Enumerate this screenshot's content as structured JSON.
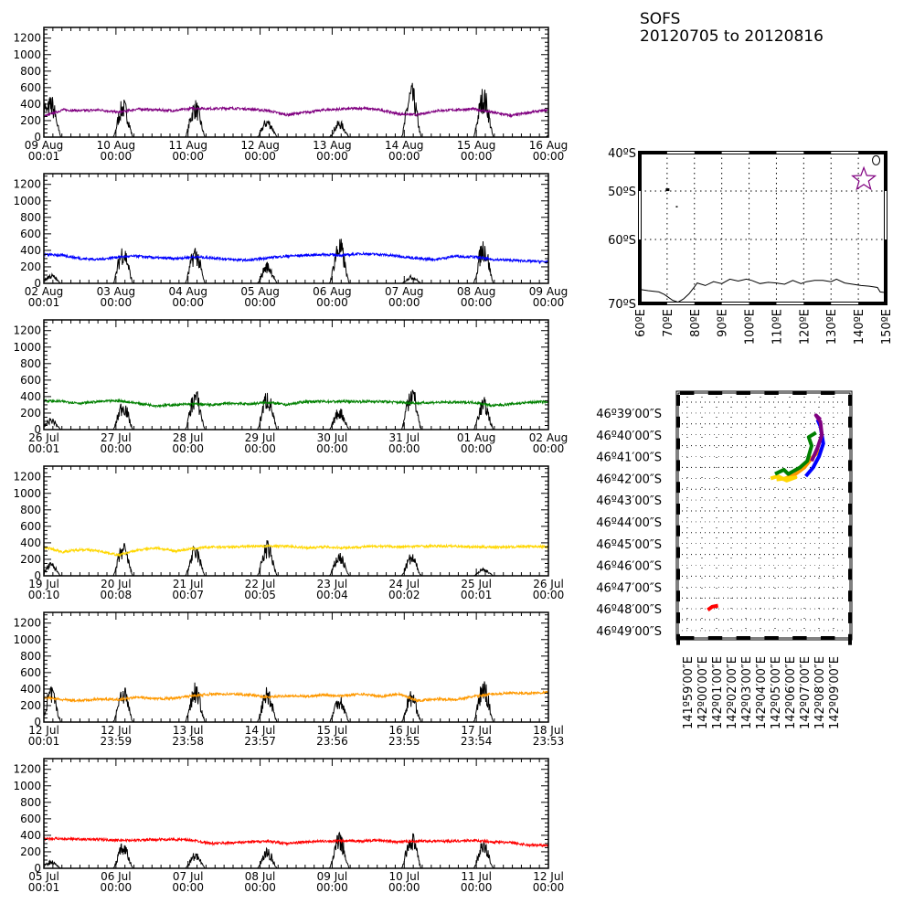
{
  "header": {
    "station": "SOFS",
    "date_range": "20120705 to 20120816"
  },
  "chart_data": [
    {
      "type": "line",
      "ylim": [
        0,
        1330
      ],
      "yticks": [
        0,
        200,
        400,
        600,
        800,
        1000,
        1200
      ],
      "xticks": [
        [
          "09 Aug",
          "00:01"
        ],
        [
          "10 Aug",
          "00:00"
        ],
        [
          "11 Aug",
          "00:00"
        ],
        [
          "12 Aug",
          "00:00"
        ],
        [
          "13 Aug",
          "00:00"
        ],
        [
          "14 Aug",
          "00:00"
        ],
        [
          "15 Aug",
          "00:00"
        ],
        [
          "16 Aug",
          "00:00"
        ]
      ],
      "color": "#800080",
      "colored_series_halfday": [
        250,
        330,
        320,
        330,
        300,
        340,
        330,
        320,
        350,
        345,
        350,
        340,
        320,
        270,
        300,
        330,
        340,
        350,
        330,
        280,
        270,
        320,
        330,
        340,
        300,
        260,
        300,
        330
      ],
      "black_series_daily_peaks": [
        520,
        480,
        470,
        240,
        210,
        670,
        630,
        150
      ]
    },
    {
      "type": "line",
      "ylim": [
        0,
        1330
      ],
      "yticks": [
        0,
        200,
        400,
        600,
        800,
        1000,
        1200
      ],
      "xticks": [
        [
          "02 Aug",
          "00:01"
        ],
        [
          "03 Aug",
          "00:00"
        ],
        [
          "04 Aug",
          "00:00"
        ],
        [
          "05 Aug",
          "00:00"
        ],
        [
          "06 Aug",
          "00:00"
        ],
        [
          "07 Aug",
          "00:00"
        ],
        [
          "08 Aug",
          "00:00"
        ],
        [
          "09 Aug",
          "00:00"
        ]
      ],
      "color": "#0000ff",
      "colored_series_halfday": [
        350,
        340,
        300,
        290,
        320,
        330,
        310,
        300,
        320,
        310,
        290,
        280,
        310,
        330,
        340,
        350,
        340,
        360,
        350,
        330,
        300,
        290,
        330,
        320,
        290,
        280,
        270,
        260
      ],
      "black_series_daily_peaks": [
        120,
        500,
        480,
        270,
        580,
        100,
        570,
        0
      ]
    },
    {
      "type": "line",
      "ylim": [
        0,
        1330
      ],
      "yticks": [
        0,
        200,
        400,
        600,
        800,
        1000,
        1200
      ],
      "xticks": [
        [
          "26 Jul",
          "00:01"
        ],
        [
          "27 Jul",
          "00:00"
        ],
        [
          "28 Jul",
          "00:00"
        ],
        [
          "29 Jul",
          "00:00"
        ],
        [
          "30 Jul",
          "00:00"
        ],
        [
          "31 Jul",
          "00:00"
        ],
        [
          "01 Aug",
          "00:00"
        ],
        [
          "02 Aug",
          "00:00"
        ]
      ],
      "color": "#008000",
      "colored_series_halfday": [
        350,
        340,
        320,
        340,
        350,
        320,
        290,
        300,
        310,
        300,
        320,
        310,
        330,
        300,
        340,
        340,
        340,
        340,
        340,
        330,
        320,
        330,
        330,
        330,
        290,
        310,
        330,
        340
      ],
      "black_series_daily_peaks": [
        150,
        380,
        520,
        500,
        280,
        600,
        400,
        0
      ]
    },
    {
      "type": "line",
      "ylim": [
        0,
        1330
      ],
      "yticks": [
        0,
        200,
        400,
        600,
        800,
        1000,
        1200
      ],
      "xticks": [
        [
          "19 Jul",
          "00:10"
        ],
        [
          "20 Jul",
          "00:08"
        ],
        [
          "21 Jul",
          "00:07"
        ],
        [
          "22 Jul",
          "00:05"
        ],
        [
          "23 Jul",
          "00:04"
        ],
        [
          "24 Jul",
          "00:02"
        ],
        [
          "25 Jul",
          "00:01"
        ],
        [
          "26 Jul",
          "00:00"
        ]
      ],
      "color": "#ffd700",
      "colored_series_halfday": [
        350,
        290,
        320,
        300,
        250,
        310,
        340,
        300,
        330,
        350,
        350,
        360,
        360,
        360,
        340,
        350,
        340,
        350,
        360,
        350,
        360,
        360,
        360,
        350,
        350,
        350,
        360,
        350
      ],
      "black_series_daily_peaks": [
        170,
        420,
        380,
        440,
        300,
        280,
        100,
        0
      ]
    },
    {
      "type": "line",
      "ylim": [
        0,
        1330
      ],
      "yticks": [
        0,
        200,
        400,
        600,
        800,
        1000,
        1200
      ],
      "xticks": [
        [
          "12 Jul",
          "00:01"
        ],
        [
          "12 Jul",
          "23:59"
        ],
        [
          "13 Jul",
          "23:58"
        ],
        [
          "14 Jul",
          "23:57"
        ],
        [
          "15 Jul",
          "23:56"
        ],
        [
          "16 Jul",
          "23:55"
        ],
        [
          "17 Jul",
          "23:54"
        ],
        [
          "18 Jul",
          "23:53"
        ]
      ],
      "color": "#ff9900",
      "colored_series_halfday": [
        300,
        270,
        260,
        280,
        270,
        300,
        280,
        290,
        320,
        340,
        340,
        330,
        300,
        320,
        310,
        330,
        320,
        340,
        310,
        340,
        260,
        280,
        270,
        310,
        340,
        350,
        350,
        360
      ],
      "black_series_daily_peaks": [
        450,
        480,
        500,
        450,
        350,
        400,
        530,
        0
      ]
    },
    {
      "type": "line",
      "ylim": [
        0,
        1330
      ],
      "yticks": [
        0,
        200,
        400,
        600,
        800,
        1000,
        1200
      ],
      "xticks": [
        [
          "05 Jul",
          "00:01"
        ],
        [
          "06 Jul",
          "00:00"
        ],
        [
          "07 Jul",
          "00:00"
        ],
        [
          "08 Jul",
          "00:00"
        ],
        [
          "09 Jul",
          "00:00"
        ],
        [
          "10 Jul",
          "00:00"
        ],
        [
          "11 Jul",
          "00:00"
        ],
        [
          "12 Jul",
          "00:00"
        ]
      ],
      "color": "#ff0000",
      "colored_series_halfday": [
        360,
        360,
        350,
        350,
        340,
        340,
        350,
        350,
        340,
        300,
        310,
        320,
        330,
        300,
        320,
        330,
        330,
        330,
        340,
        320,
        330,
        330,
        330,
        340,
        320,
        310,
        280,
        280
      ],
      "black_series_daily_peaks": [
        100,
        320,
        200,
        250,
        440,
        460,
        350,
        0
      ]
    }
  ],
  "overview_map": {
    "lon_ticks": [
      "60ºE",
      "70ºE",
      "80ºE",
      "90ºE",
      "100ºE",
      "110ºE",
      "120ºE",
      "130ºE",
      "140ºE",
      "150ºE"
    ],
    "lat_ticks": [
      "40ºS",
      "50ºS",
      "60ºS",
      "70ºS"
    ],
    "star_color": "#800080",
    "star_position": {
      "lon": 142,
      "lat": -47
    },
    "coastline": [
      [
        60,
        -67.8
      ],
      [
        63,
        -68
      ],
      [
        67,
        -68.2
      ],
      [
        69,
        -68.6
      ],
      [
        72,
        -69.5
      ],
      [
        74,
        -69.8
      ],
      [
        76,
        -69.3
      ],
      [
        78,
        -68.5
      ],
      [
        80,
        -67.4
      ],
      [
        81,
        -66.8
      ],
      [
        84,
        -67.2
      ],
      [
        87,
        -66.6
      ],
      [
        90,
        -66.9
      ],
      [
        93,
        -66.2
      ],
      [
        96,
        -66.5
      ],
      [
        99,
        -66.2
      ],
      [
        101,
        -66.4
      ],
      [
        104,
        -66.9
      ],
      [
        107,
        -66.7
      ],
      [
        110,
        -66.8
      ],
      [
        113,
        -67.0
      ],
      [
        116,
        -66.4
      ],
      [
        119,
        -66.9
      ],
      [
        121,
        -66.6
      ],
      [
        124,
        -66.4
      ],
      [
        127,
        -66.4
      ],
      [
        130,
        -66.6
      ],
      [
        132,
        -66.2
      ],
      [
        135,
        -66.8
      ],
      [
        138,
        -67.0
      ],
      [
        141,
        -67.2
      ],
      [
        144,
        -67.3
      ],
      [
        147,
        -67.5
      ],
      [
        148,
        -68.2
      ],
      [
        150,
        -68.3
      ]
    ]
  },
  "detail_map": {
    "lat_ticks": [
      "46º39′00″S",
      "46º40′00″S",
      "46º41′00″S",
      "46º42′00″S",
      "46º43′00″S",
      "46º44′00″S",
      "46º45′00″S",
      "46º46′00″S",
      "46º47′00″S",
      "46º48′00″S",
      "46º49′00″S"
    ],
    "lon_ticks": [
      "141º59′00″E",
      "142º00′00″E",
      "142º01′00″E",
      "142º02′00″E",
      "142º03′00″E",
      "142º04′00″E",
      "142º05′00″E",
      "142º06′00″E",
      "142º07′00″E",
      "142º08′00″E",
      "142º09′00″E"
    ],
    "tracks": [
      {
        "color": "#ff0000",
        "points": [
          [
            0.4,
            -48.05
          ],
          [
            0.7,
            -47.9
          ],
          [
            1.1,
            -47.85
          ]
        ]
      },
      {
        "color": "#ff9900",
        "points": [
          [
            5.5,
            -42.05
          ],
          [
            6.3,
            -41.85
          ],
          [
            7.0,
            -41.5
          ],
          [
            7.6,
            -41.0
          ],
          [
            8.1,
            -40.7
          ]
        ]
      },
      {
        "color": "#ffd700",
        "points": [
          [
            4.7,
            -42.0
          ],
          [
            5.2,
            -41.9
          ],
          [
            5.8,
            -42.1
          ],
          [
            6.4,
            -41.95
          ],
          [
            5.1,
            -42.05
          ]
        ]
      },
      {
        "color": "#008000",
        "points": [
          [
            5.0,
            -41.8
          ],
          [
            5.6,
            -41.6
          ],
          [
            5.9,
            -41.8
          ],
          [
            6.7,
            -41.5
          ],
          [
            7.2,
            -41.2
          ],
          [
            7.5,
            -40.5
          ],
          [
            7.3,
            -40.1
          ],
          [
            7.8,
            -39.9
          ]
        ]
      },
      {
        "color": "#0000ff",
        "points": [
          [
            7.1,
            -41.9
          ],
          [
            7.6,
            -41.5
          ],
          [
            8.0,
            -41.0
          ],
          [
            8.3,
            -40.4
          ],
          [
            8.1,
            -39.6
          ],
          [
            7.9,
            -39.3
          ]
        ]
      },
      {
        "color": "#800080",
        "points": [
          [
            7.5,
            -41.2
          ],
          [
            7.9,
            -40.6
          ],
          [
            8.2,
            -40.0
          ],
          [
            8.1,
            -39.4
          ],
          [
            7.8,
            -39.1
          ],
          [
            8.1,
            -39.3
          ]
        ]
      }
    ]
  }
}
